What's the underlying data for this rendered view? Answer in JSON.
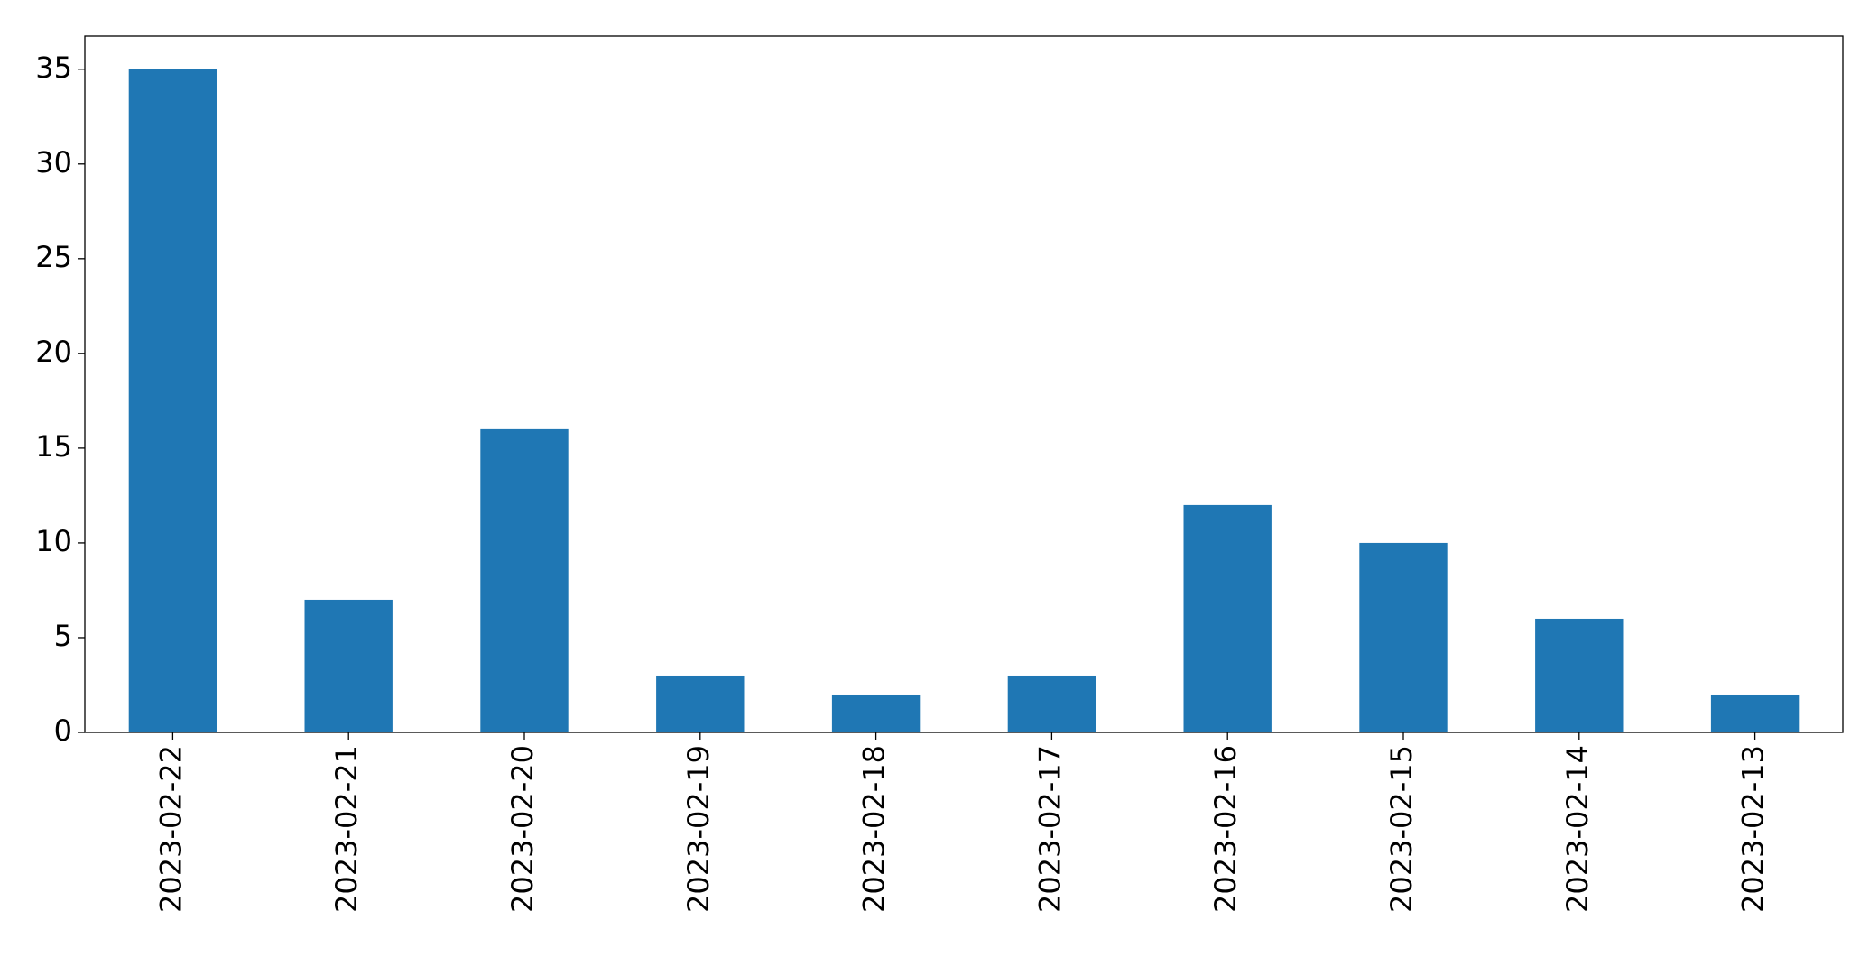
{
  "chart_data": {
    "type": "bar",
    "categories": [
      "2023-02-22",
      "2023-02-21",
      "2023-02-20",
      "2023-02-19",
      "2023-02-18",
      "2023-02-17",
      "2023-02-16",
      "2023-02-15",
      "2023-02-14",
      "2023-02-13"
    ],
    "values": [
      35,
      7,
      16,
      3,
      2,
      3,
      12,
      10,
      6,
      2
    ],
    "color": "#1f77b4",
    "ylim": [
      0,
      36.75
    ],
    "yticks": [
      0,
      5,
      10,
      15,
      20,
      25,
      30,
      35
    ],
    "grid": false
  }
}
